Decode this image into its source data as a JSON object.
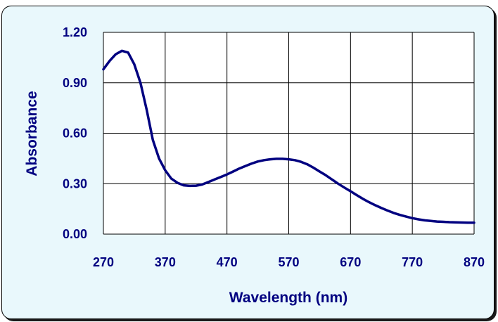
{
  "chart_data": {
    "type": "line",
    "title": "",
    "xlabel": "Wavelength (nm)",
    "ylabel": "Absorbance",
    "xlim": [
      270,
      870
    ],
    "ylim": [
      0.0,
      1.2
    ],
    "x_ticks": [
      "270",
      "370",
      "470",
      "570",
      "670",
      "770",
      "870"
    ],
    "y_ticks": [
      "0.00",
      "0.30",
      "0.60",
      "0.90",
      "1.20"
    ],
    "grid": true,
    "legend": "none",
    "colors": {
      "line": "#000080",
      "plot_background": "#ffffff",
      "frame_background": "#e9f8fc",
      "text": "#000080"
    },
    "series": [
      {
        "x": [
          270,
          280,
          290,
          300,
          310,
          320,
          330,
          340,
          350,
          360,
          370,
          380,
          390,
          400,
          410,
          420,
          430,
          440,
          450,
          460,
          470,
          480,
          490,
          500,
          510,
          520,
          530,
          540,
          550,
          560,
          570,
          580,
          590,
          600,
          610,
          620,
          630,
          640,
          650,
          660,
          670,
          680,
          690,
          700,
          710,
          720,
          730,
          740,
          750,
          760,
          770,
          780,
          790,
          800,
          810,
          820,
          830,
          840,
          850,
          860,
          870
        ],
        "y": [
          0.98,
          1.03,
          1.07,
          1.09,
          1.08,
          1.01,
          0.9,
          0.74,
          0.56,
          0.45,
          0.38,
          0.33,
          0.305,
          0.29,
          0.287,
          0.288,
          0.295,
          0.31,
          0.325,
          0.34,
          0.355,
          0.372,
          0.39,
          0.405,
          0.42,
          0.432,
          0.44,
          0.445,
          0.448,
          0.448,
          0.445,
          0.44,
          0.43,
          0.415,
          0.395,
          0.372,
          0.35,
          0.325,
          0.3,
          0.277,
          0.255,
          0.232,
          0.21,
          0.19,
          0.172,
          0.155,
          0.14,
          0.126,
          0.114,
          0.104,
          0.095,
          0.088,
          0.082,
          0.078,
          0.075,
          0.073,
          0.071,
          0.07,
          0.069,
          0.068,
          0.068
        ]
      }
    ]
  }
}
